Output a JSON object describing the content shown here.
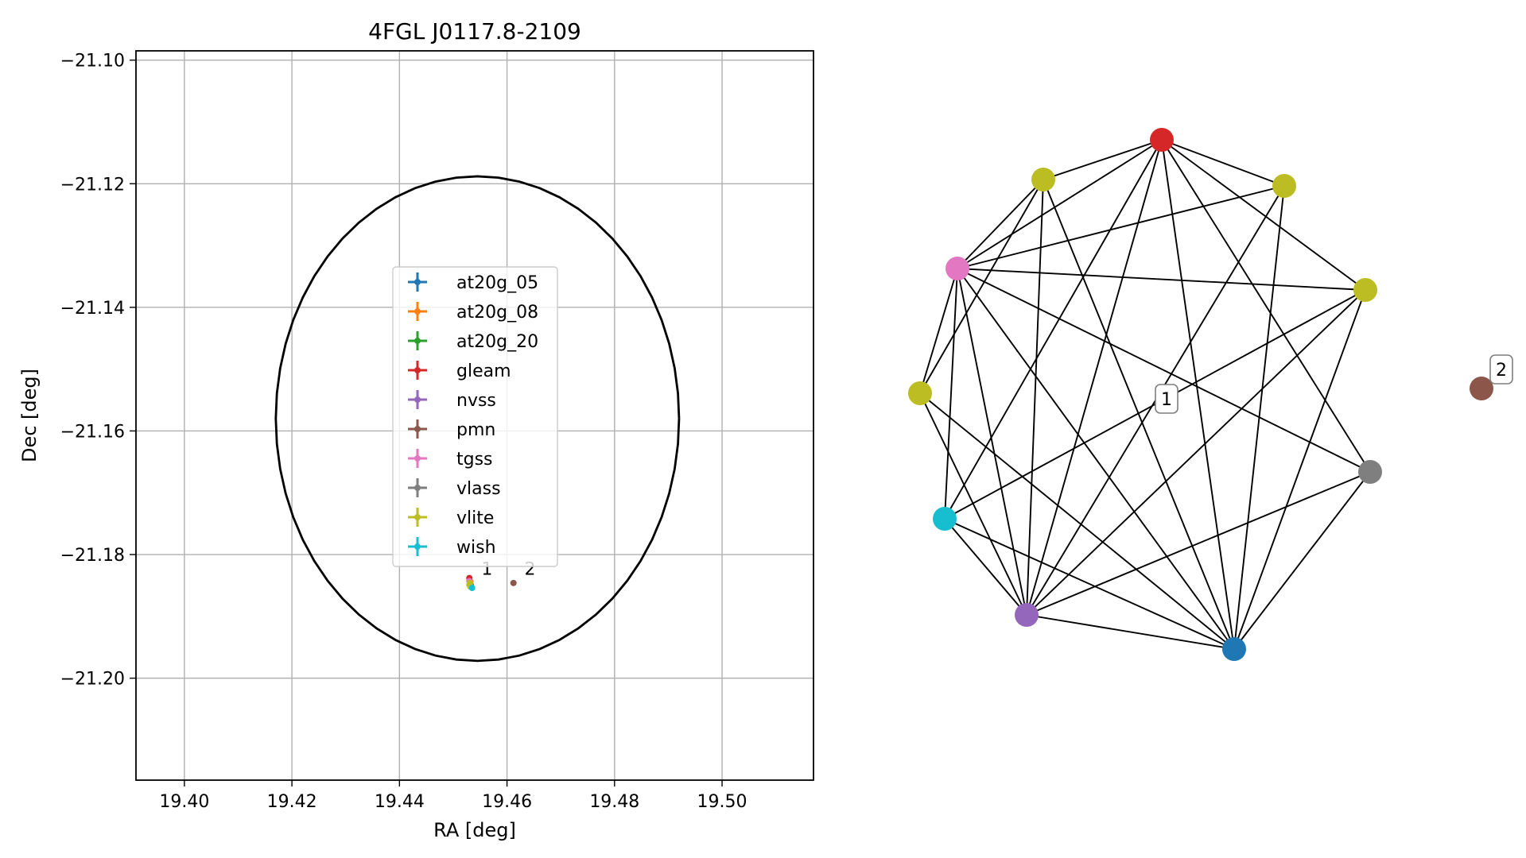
{
  "chart_data": [
    {
      "type": "scatter",
      "title": "4FGL J0117.8-2109",
      "xlabel": "RA [deg]",
      "ylabel": "Dec [deg]",
      "xlim": [
        19.391,
        19.517
      ],
      "ylim": [
        -21.2165,
        -21.0985
      ],
      "x_ticks": [
        19.4,
        19.42,
        19.44,
        19.46,
        19.48,
        19.5
      ],
      "x_tick_labels": [
        "19.40",
        "19.42",
        "19.44",
        "19.46",
        "19.48",
        "19.50"
      ],
      "y_ticks": [
        -21.1,
        -21.12,
        -21.14,
        -21.16,
        -21.18,
        -21.2
      ],
      "y_tick_labels": [
        "−21.10",
        "−21.12",
        "−21.14",
        "−21.16",
        "−21.18",
        "−21.20"
      ],
      "grid": true,
      "legend_placement": "center",
      "ellipse": {
        "center": [
          19.4545,
          -21.158
        ],
        "semi_ra": 0.0375,
        "semi_dec": 0.0392,
        "color": "#000000"
      },
      "series": [
        {
          "name": "at20g_05",
          "color": "#1f77b4",
          "points": [
            [
              19.4533,
              -21.185
            ]
          ]
        },
        {
          "name": "at20g_08",
          "color": "#ff7f0e",
          "points": [
            [
              19.4532,
              -21.1844
            ]
          ]
        },
        {
          "name": "at20g_20",
          "color": "#2ca02c",
          "points": [
            [
              19.4531,
              -21.1849
            ]
          ]
        },
        {
          "name": "gleam",
          "color": "#d62728",
          "points": [
            [
              19.453,
              -21.1838
            ]
          ]
        },
        {
          "name": "nvss",
          "color": "#9467bd",
          "points": [
            [
              19.4532,
              -21.1851
            ]
          ]
        },
        {
          "name": "pmn",
          "color": "#8c564b",
          "points": [
            [
              19.4612,
              -21.1846
            ]
          ]
        },
        {
          "name": "tgss",
          "color": "#e377c2",
          "points": [
            [
              19.453,
              -21.1843
            ]
          ]
        },
        {
          "name": "vlass",
          "color": "#7f7f7f",
          "points": [
            [
              19.4532,
              -21.1848
            ]
          ]
        },
        {
          "name": "vlite",
          "color": "#bcbd22",
          "points": [
            [
              19.4531,
              -21.1846
            ],
            [
              19.4532,
              -21.1852
            ],
            [
              19.453,
              -21.1849
            ]
          ]
        },
        {
          "name": "wish",
          "color": "#17becf",
          "points": [
            [
              19.4535,
              -21.1854
            ]
          ]
        }
      ],
      "cluster_labels": [
        {
          "text": "1",
          "ra": 19.4545,
          "dec": -21.1825
        },
        {
          "text": "2",
          "ra": 19.4625,
          "dec": -21.1825
        }
      ]
    },
    {
      "type": "network",
      "cluster_labels": [
        "1",
        "2"
      ],
      "nodes": [
        {
          "id": "gleam",
          "color": "#d62728",
          "cluster": "1"
        },
        {
          "id": "vlite_a",
          "color": "#bcbd22",
          "cluster": "1"
        },
        {
          "id": "vlite_b",
          "color": "#bcbd22",
          "cluster": "1"
        },
        {
          "id": "tgss",
          "color": "#e377c2",
          "cluster": "1"
        },
        {
          "id": "vlite_c",
          "color": "#bcbd22",
          "cluster": "1"
        },
        {
          "id": "vlite_d",
          "color": "#bcbd22",
          "cluster": "1"
        },
        {
          "id": "vlass",
          "color": "#7f7f7f",
          "cluster": "1"
        },
        {
          "id": "wish",
          "color": "#17becf",
          "cluster": "1"
        },
        {
          "id": "nvss",
          "color": "#9467bd",
          "cluster": "1"
        },
        {
          "id": "at20g",
          "color": "#1f77b4",
          "cluster": "1"
        },
        {
          "id": "pmn",
          "color": "#8c564b",
          "cluster": "2"
        }
      ],
      "edges": [
        [
          "gleam",
          "vlite_a"
        ],
        [
          "gleam",
          "vlite_b"
        ],
        [
          "gleam",
          "tgss"
        ],
        [
          "gleam",
          "vlite_d"
        ],
        [
          "gleam",
          "vlass"
        ],
        [
          "gleam",
          "wish"
        ],
        [
          "gleam",
          "nvss"
        ],
        [
          "gleam",
          "at20g"
        ],
        [
          "vlite_a",
          "tgss"
        ],
        [
          "vlite_a",
          "vlite_c"
        ],
        [
          "vlite_a",
          "nvss"
        ],
        [
          "vlite_a",
          "at20g"
        ],
        [
          "vlite_b",
          "tgss"
        ],
        [
          "vlite_b",
          "nvss"
        ],
        [
          "vlite_b",
          "at20g"
        ],
        [
          "tgss",
          "vlite_d"
        ],
        [
          "tgss",
          "vlass"
        ],
        [
          "tgss",
          "wish"
        ],
        [
          "tgss",
          "nvss"
        ],
        [
          "tgss",
          "at20g"
        ],
        [
          "tgss",
          "vlite_c"
        ],
        [
          "vlite_d",
          "wish"
        ],
        [
          "vlite_d",
          "nvss"
        ],
        [
          "vlite_d",
          "at20g"
        ],
        [
          "vlite_c",
          "nvss"
        ],
        [
          "vlite_c",
          "at20g"
        ],
        [
          "wish",
          "nvss"
        ],
        [
          "wish",
          "at20g"
        ],
        [
          "vlass",
          "nvss"
        ],
        [
          "vlass",
          "at20g"
        ],
        [
          "nvss",
          "at20g"
        ]
      ]
    }
  ]
}
